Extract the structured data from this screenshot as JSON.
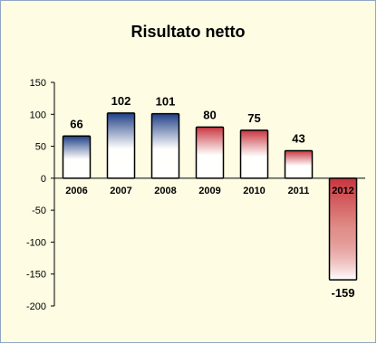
{
  "chart_data": {
    "type": "bar",
    "title": "Risultato netto",
    "xlabel": "",
    "ylabel": "",
    "categories": [
      "2006",
      "2007",
      "2008",
      "2009",
      "2010",
      "2011",
      "2012"
    ],
    "values": [
      66,
      102,
      101,
      80,
      75,
      43,
      -159
    ],
    "data_labels": [
      "66",
      "102",
      "101",
      "80",
      "75",
      "43",
      "-159"
    ],
    "ylim": [
      -200,
      150
    ],
    "yticks": [
      150,
      100,
      50,
      0,
      -50,
      -100,
      -150,
      -200
    ],
    "ytick_labels": [
      "150",
      "100",
      "50",
      "0",
      "-50",
      "-100",
      "-150",
      "-200"
    ],
    "grid": false,
    "legend": "none",
    "colors": {
      "blue_bar": "#1f3f86",
      "red_bar": "#c8363f",
      "background": "#fefce3",
      "border": "#8fa6c6"
    },
    "bar_color_keys": [
      "blue_bar",
      "blue_bar",
      "blue_bar",
      "red_bar",
      "red_bar",
      "red_bar",
      "red_bar"
    ]
  }
}
